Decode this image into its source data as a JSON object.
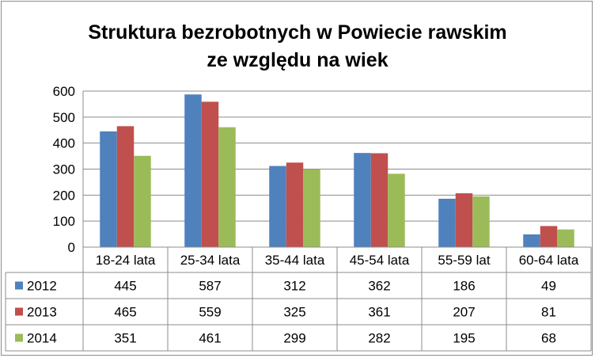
{
  "chart_data": {
    "type": "bar",
    "title": [
      "Struktura bezrobotnych w Powiecie rawskim",
      "ze względu na wiek"
    ],
    "categories": [
      "18-24 lata",
      "25-34 lata",
      "35-44 lata",
      "45-54 lata",
      "55-59 lat",
      "60-64 lata"
    ],
    "series": [
      {
        "name": "2012",
        "color": "#4f81bd",
        "values": [
          445,
          587,
          312,
          362,
          186,
          49
        ]
      },
      {
        "name": "2013",
        "color": "#c0504d",
        "values": [
          465,
          559,
          325,
          361,
          207,
          81
        ]
      },
      {
        "name": "2014",
        "color": "#9bbb59",
        "values": [
          351,
          461,
          299,
          282,
          195,
          68
        ]
      }
    ],
    "yticks": [
      0,
      100,
      200,
      300,
      400,
      500,
      600
    ],
    "ylim": [
      0,
      600
    ],
    "grid": true,
    "legend": "data-table",
    "data_table": true
  }
}
